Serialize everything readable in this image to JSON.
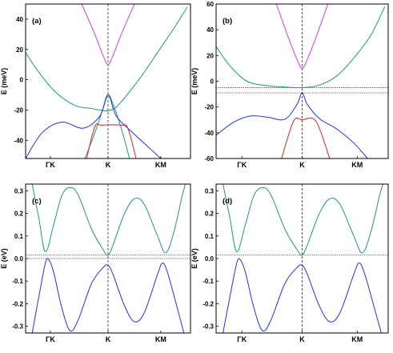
{
  "chart_data": [
    {
      "id": "a",
      "type": "line",
      "panel_label": "(a)",
      "ylabel": "E (meV)",
      "ylim": [
        -52,
        50
      ],
      "yticks": [
        -40,
        -20,
        0,
        20,
        40
      ],
      "ytick_labels": [
        "-40",
        "-20",
        "0",
        "20",
        "40"
      ],
      "xlim": [
        0,
        1
      ],
      "xticks": [
        0.15,
        0.5,
        0.82
      ],
      "xtick_labels": [
        "ΓK",
        "K",
        "KM"
      ],
      "vline_x": 0.5,
      "hlines": [],
      "colors": {
        "green": "#1f9a76",
        "magenta": "#cc44dd",
        "blue": "#2233dd",
        "red": "#dd2222"
      },
      "series": [
        {
          "color": "green",
          "points": [
            [
              0.0,
              18
            ],
            [
              0.08,
              5
            ],
            [
              0.18,
              -8
            ],
            [
              0.3,
              -17
            ],
            [
              0.4,
              -19
            ],
            [
              0.45,
              -20
            ],
            [
              0.5,
              -20.5
            ],
            [
              0.55,
              -18
            ],
            [
              0.6,
              -12
            ],
            [
              0.7,
              2
            ],
            [
              0.8,
              18
            ],
            [
              0.9,
              34
            ],
            [
              0.98,
              48
            ]
          ]
        },
        {
          "color": "green",
          "points": [
            [
              0.36,
              -52
            ],
            [
              0.42,
              -35
            ],
            [
              0.47,
              -19
            ],
            [
              0.5,
              -10
            ],
            [
              0.53,
              -16
            ],
            [
              0.58,
              -32
            ],
            [
              0.63,
              -52
            ]
          ]
        },
        {
          "color": "magenta",
          "points": [
            [
              0.34,
              50
            ],
            [
              0.42,
              30
            ],
            [
              0.47,
              16
            ],
            [
              0.5,
              10
            ],
            [
              0.53,
              16
            ],
            [
              0.58,
              30
            ],
            [
              0.66,
              50
            ]
          ]
        },
        {
          "color": "blue",
          "points": [
            [
              0.0,
              -52
            ],
            [
              0.1,
              -35
            ],
            [
              0.22,
              -28
            ],
            [
              0.35,
              -32
            ],
            [
              0.45,
              -24
            ],
            [
              0.5,
              -10
            ],
            [
              0.55,
              -24
            ],
            [
              0.65,
              -35
            ],
            [
              0.75,
              -45
            ],
            [
              0.82,
              -52
            ]
          ]
        },
        {
          "color": "red",
          "points": [
            [
              0.37,
              -52
            ],
            [
              0.42,
              -31
            ],
            [
              0.46,
              -30
            ],
            [
              0.58,
              -30
            ],
            [
              0.62,
              -32
            ],
            [
              0.67,
              -52
            ]
          ]
        }
      ]
    },
    {
      "id": "b",
      "type": "line",
      "panel_label": "(b)",
      "ylabel": "E (meV)",
      "ylim": [
        -60,
        60
      ],
      "yticks": [
        -60,
        -40,
        -20,
        0,
        20,
        40,
        60
      ],
      "ytick_labels": [
        "-60",
        "-40",
        "-20",
        "0",
        "20",
        "40",
        "60"
      ],
      "xlim": [
        0,
        1
      ],
      "xticks": [
        0.15,
        0.5,
        0.82
      ],
      "xtick_labels": [
        "ΓK",
        "K",
        "KM"
      ],
      "vline_x": 0.5,
      "hlines": [
        -5,
        -9
      ],
      "colors": {
        "green": "#1f9a76",
        "magenta": "#cc44dd",
        "blue": "#2233dd",
        "red": "#dd2222"
      },
      "series": [
        {
          "color": "green",
          "points": [
            [
              0.0,
              27
            ],
            [
              0.08,
              12
            ],
            [
              0.18,
              0
            ],
            [
              0.3,
              -3.5
            ],
            [
              0.4,
              -4.5
            ],
            [
              0.5,
              -5
            ],
            [
              0.6,
              -3
            ],
            [
              0.7,
              4
            ],
            [
              0.8,
              18
            ],
            [
              0.9,
              36
            ],
            [
              0.98,
              58
            ]
          ]
        },
        {
          "color": "magenta",
          "points": [
            [
              0.35,
              60
            ],
            [
              0.42,
              34
            ],
            [
              0.47,
              17
            ],
            [
              0.5,
              10
            ],
            [
              0.53,
              17
            ],
            [
              0.58,
              34
            ],
            [
              0.65,
              60
            ]
          ]
        },
        {
          "color": "blue",
          "points": [
            [
              0.0,
              -42
            ],
            [
              0.1,
              -32
            ],
            [
              0.2,
              -27
            ],
            [
              0.3,
              -28
            ],
            [
              0.4,
              -29.5
            ],
            [
              0.47,
              -18
            ],
            [
              0.5,
              -9
            ],
            [
              0.53,
              -18
            ],
            [
              0.6,
              -29
            ],
            [
              0.7,
              -37
            ],
            [
              0.8,
              -48
            ],
            [
              0.88,
              -60
            ]
          ]
        },
        {
          "color": "red",
          "points": [
            [
              0.38,
              -60
            ],
            [
              0.45,
              -31
            ],
            [
              0.5,
              -30
            ],
            [
              0.58,
              -31
            ],
            [
              0.66,
              -60
            ]
          ]
        }
      ]
    },
    {
      "id": "c",
      "type": "line",
      "panel_label": "(c)",
      "ylabel": "E (eV)",
      "ylim": [
        -0.33,
        0.33
      ],
      "yticks": [
        -0.3,
        -0.2,
        -0.1,
        0.0,
        0.1,
        0.2,
        0.3
      ],
      "ytick_labels": [
        "-0.3",
        "-0.2",
        "-0.1",
        "0.0",
        "0.1",
        "0.2",
        "0.3"
      ],
      "xlim": [
        0,
        1
      ],
      "xticks": [
        0.15,
        0.5,
        0.82
      ],
      "xtick_labels": [
        "ΓK",
        "K",
        "KM"
      ],
      "vline_x": 0.5,
      "hlines": [
        0.0,
        0.015
      ],
      "colors": {
        "green": "#1f9a76",
        "blue": "#2233dd"
      },
      "series": [
        {
          "color": "green",
          "points": [
            [
              0.04,
              0.33
            ],
            [
              0.08,
              0.18
            ],
            [
              0.12,
              0.03
            ],
            [
              0.17,
              0.15
            ],
            [
              0.22,
              0.28
            ],
            [
              0.27,
              0.315
            ],
            [
              0.32,
              0.28
            ],
            [
              0.4,
              0.13
            ],
            [
              0.47,
              0.04
            ],
            [
              0.5,
              0.015
            ],
            [
              0.53,
              0.06
            ],
            [
              0.6,
              0.2
            ],
            [
              0.66,
              0.265
            ],
            [
              0.72,
              0.24
            ],
            [
              0.8,
              0.1
            ],
            [
              0.85,
              0.025
            ],
            [
              0.9,
              0.12
            ],
            [
              0.95,
              0.28
            ],
            [
              0.97,
              0.33
            ]
          ]
        },
        {
          "color": "blue",
          "points": [
            [
              0.04,
              -0.33
            ],
            [
              0.08,
              -0.17
            ],
            [
              0.12,
              -0.02
            ],
            [
              0.14,
              -0.005
            ],
            [
              0.17,
              -0.06
            ],
            [
              0.22,
              -0.22
            ],
            [
              0.27,
              -0.32
            ],
            [
              0.32,
              -0.27
            ],
            [
              0.4,
              -0.11
            ],
            [
              0.47,
              -0.04
            ],
            [
              0.5,
              -0.03
            ],
            [
              0.53,
              -0.07
            ],
            [
              0.6,
              -0.21
            ],
            [
              0.66,
              -0.28
            ],
            [
              0.72,
              -0.24
            ],
            [
              0.8,
              -0.07
            ],
            [
              0.83,
              -0.02
            ],
            [
              0.86,
              -0.06
            ],
            [
              0.92,
              -0.22
            ],
            [
              0.96,
              -0.33
            ]
          ]
        }
      ]
    },
    {
      "id": "d",
      "type": "line",
      "panel_label": "(d)",
      "ylabel": "E (eV)",
      "ylim": [
        -0.33,
        0.33
      ],
      "yticks": [
        -0.3,
        -0.2,
        -0.1,
        0.0,
        0.1,
        0.2,
        0.3
      ],
      "ytick_labels": [
        "-0.3",
        "-0.2",
        "-0.1",
        "0.0",
        "0.1",
        "0.2",
        "0.3"
      ],
      "xlim": [
        0,
        1
      ],
      "xticks": [
        0.15,
        0.5,
        0.82
      ],
      "xtick_labels": [
        "ΓK",
        "K",
        "KM"
      ],
      "vline_x": 0.5,
      "hlines": [
        0.015
      ],
      "colors": {
        "green": "#1f9a76",
        "blue": "#2233dd"
      },
      "series": [
        {
          "color": "green",
          "points": [
            [
              0.04,
              0.33
            ],
            [
              0.08,
              0.18
            ],
            [
              0.12,
              0.03
            ],
            [
              0.17,
              0.15
            ],
            [
              0.22,
              0.28
            ],
            [
              0.27,
              0.315
            ],
            [
              0.32,
              0.28
            ],
            [
              0.4,
              0.13
            ],
            [
              0.47,
              0.04
            ],
            [
              0.5,
              0.015
            ],
            [
              0.53,
              0.06
            ],
            [
              0.6,
              0.2
            ],
            [
              0.66,
              0.265
            ],
            [
              0.72,
              0.24
            ],
            [
              0.8,
              0.1
            ],
            [
              0.85,
              0.025
            ],
            [
              0.9,
              0.12
            ],
            [
              0.95,
              0.28
            ],
            [
              0.97,
              0.33
            ]
          ]
        },
        {
          "color": "blue",
          "points": [
            [
              0.04,
              -0.33
            ],
            [
              0.08,
              -0.17
            ],
            [
              0.12,
              -0.02
            ],
            [
              0.14,
              -0.005
            ],
            [
              0.17,
              -0.06
            ],
            [
              0.22,
              -0.22
            ],
            [
              0.27,
              -0.32
            ],
            [
              0.32,
              -0.27
            ],
            [
              0.4,
              -0.11
            ],
            [
              0.47,
              -0.04
            ],
            [
              0.5,
              -0.03
            ],
            [
              0.53,
              -0.07
            ],
            [
              0.6,
              -0.21
            ],
            [
              0.66,
              -0.28
            ],
            [
              0.72,
              -0.24
            ],
            [
              0.8,
              -0.07
            ],
            [
              0.83,
              -0.02
            ],
            [
              0.86,
              -0.06
            ],
            [
              0.92,
              -0.22
            ],
            [
              0.96,
              -0.33
            ]
          ]
        }
      ]
    }
  ]
}
